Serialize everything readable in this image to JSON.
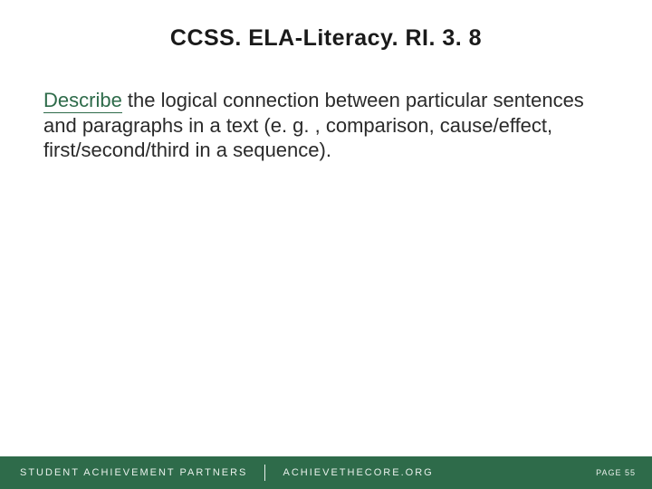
{
  "slide": {
    "title": "CCSS. ELA-Literacy. RI. 3. 8",
    "lead_word": "Describe",
    "body_rest": " the logical connection between particular sentences and paragraphs in a text (e. g. , comparison, cause/effect, first/second/third in a sequence).",
    "title_color": "#1a1a1a",
    "lead_color": "#2e6b4a",
    "body_color": "#2a2a2a",
    "title_fontsize": 25,
    "body_fontsize": 22,
    "background_color": "#ffffff"
  },
  "footer": {
    "org": "STUDENT ACHIEVEMENT PARTNERS",
    "url": "ACHIEVETHECORE.ORG",
    "page_label": "PAGE 55",
    "background_color": "#2e6b4a",
    "text_color": "#e8f0eb",
    "height": 36
  }
}
